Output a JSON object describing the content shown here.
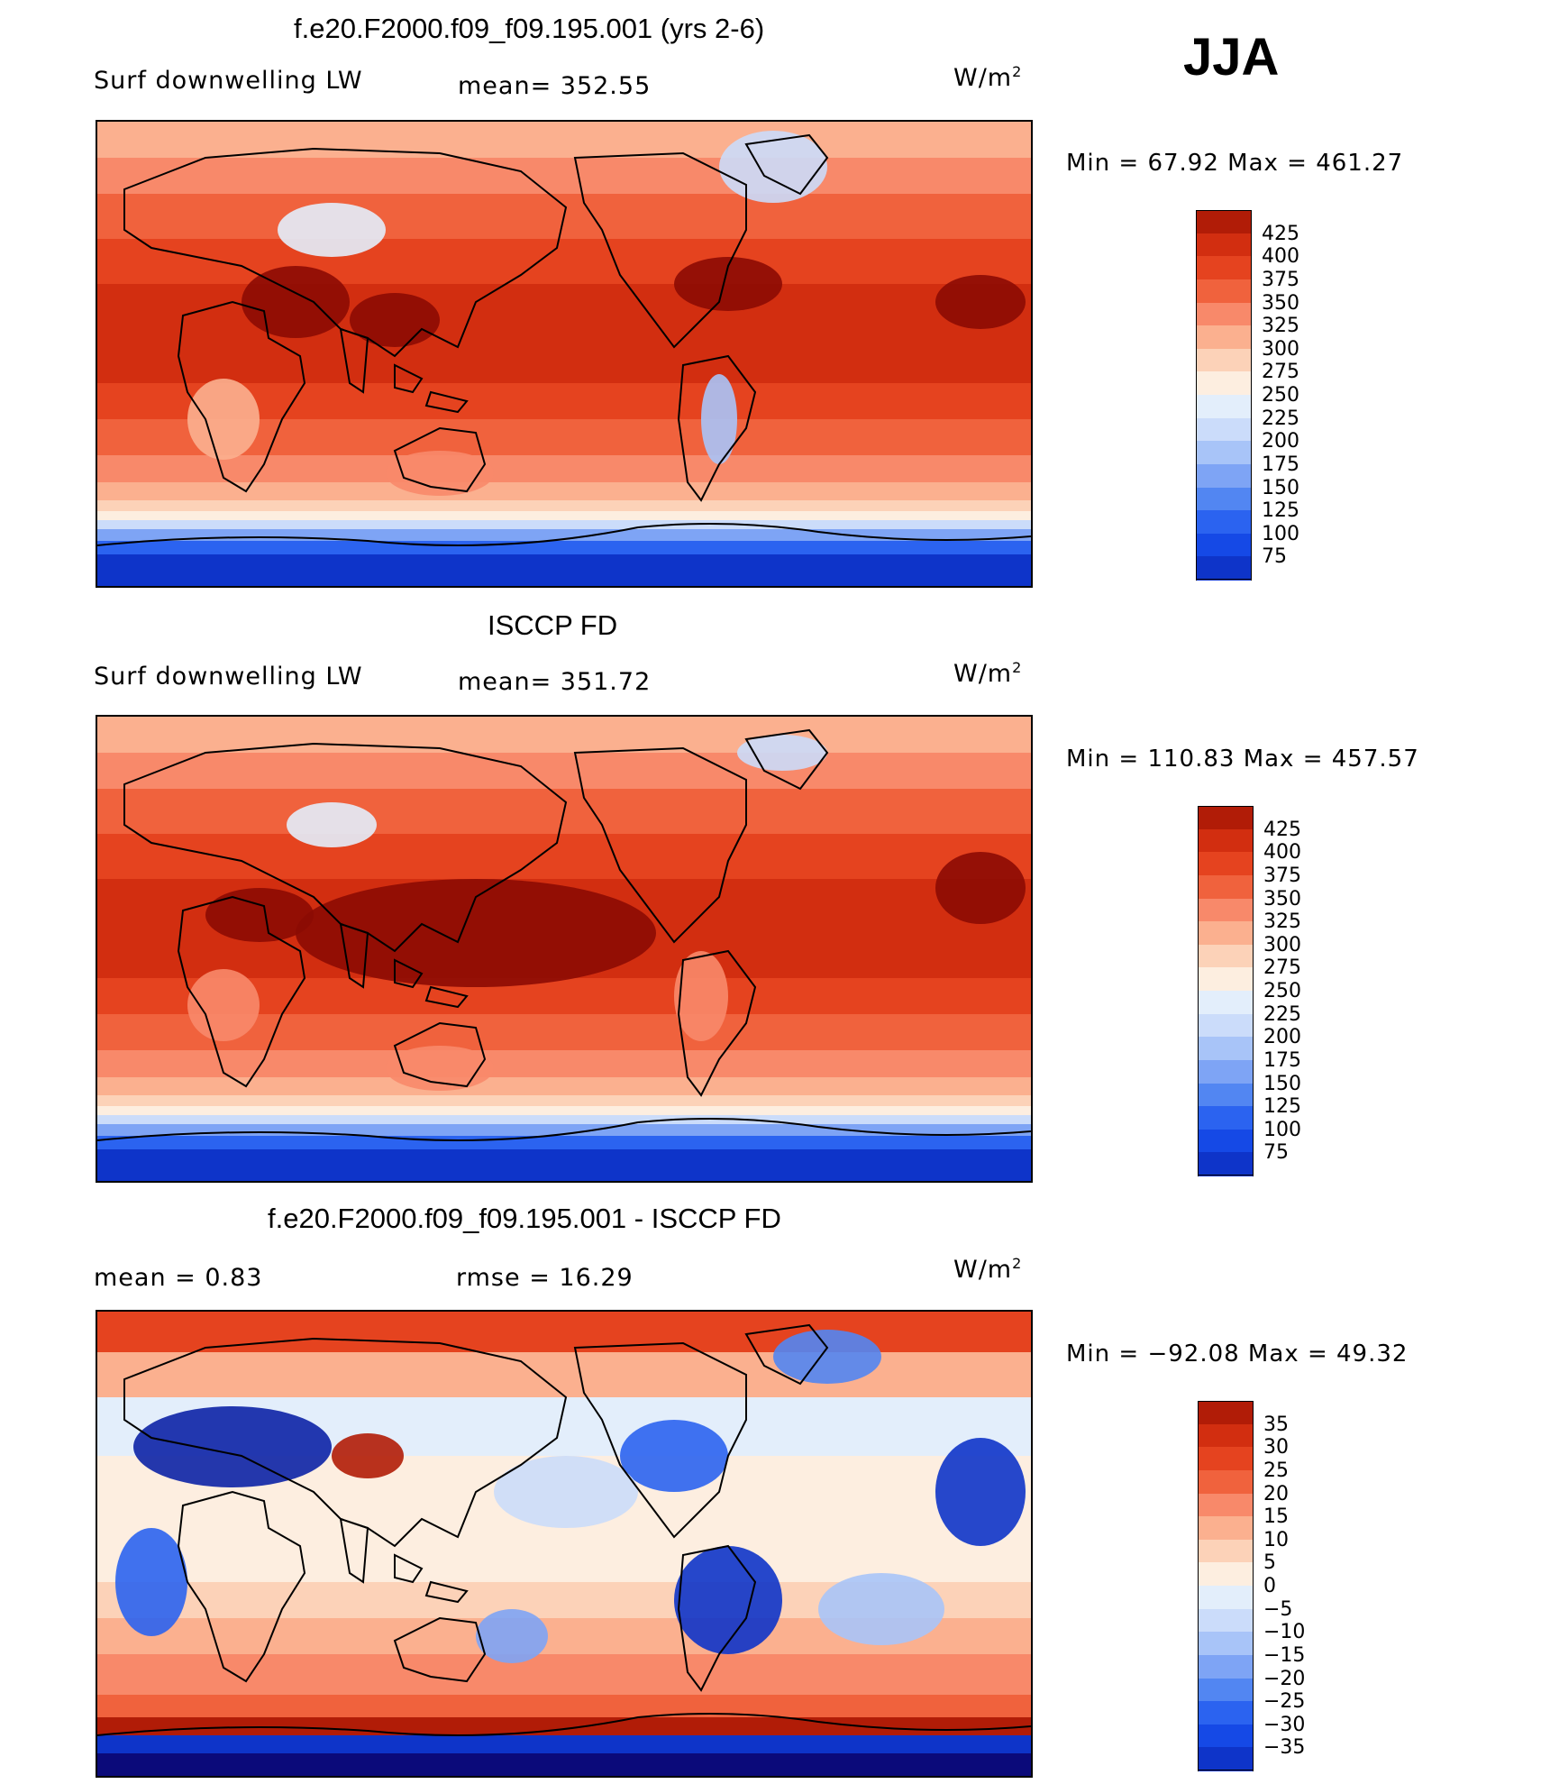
{
  "season": "JJA",
  "colors": {
    "abs_scale": [
      "#0b0a7a",
      "#0c22a6",
      "#0e34c9",
      "#1549e6",
      "#2b63f0",
      "#5286f2",
      "#7ea4f5",
      "#a8c4f8",
      "#cbdcfa",
      "#e3eefb",
      "#fdeee0",
      "#fcd2b8",
      "#fbb08f",
      "#f8896a",
      "#f0623d",
      "#e5431f",
      "#d22e10",
      "#b11c07",
      "#8c0b03"
    ],
    "diff_scale": [
      "#0b0a7a",
      "#0c22a6",
      "#0e34c9",
      "#1549e6",
      "#2b63f0",
      "#5286f2",
      "#7ea4f5",
      "#a8c4f8",
      "#cbdcfa",
      "#e3eefb",
      "#fdeee0",
      "#fcd2b8",
      "#fbb08f",
      "#f8896a",
      "#f0623d",
      "#e5431f",
      "#d22e10",
      "#b11c07",
      "#8c0b03"
    ]
  },
  "panels": [
    {
      "title": "f.e20.F2000.f09_f09.195.001 (yrs 2-6)",
      "left_label": "Surf  downwelling  LW",
      "mid_label": "mean=  352.55",
      "units": "W/m",
      "units_sup": "2",
      "minmax": "Min  =    67.92  Max  =  461.27",
      "colorbar_labels": [
        "425",
        "400",
        "375",
        "350",
        "325",
        "300",
        "275",
        "250",
        "225",
        "200",
        "175",
        "150",
        "125",
        "100",
        "75"
      ],
      "type": "model"
    },
    {
      "title": "ISCCP FD",
      "left_label": "Surf  downwelling  LW",
      "mid_label": "mean=  351.72",
      "units": "W/m",
      "units_sup": "2",
      "minmax": "Min  =  110.83  Max  =  457.57",
      "colorbar_labels": [
        "425",
        "400",
        "375",
        "350",
        "325",
        "300",
        "275",
        "250",
        "225",
        "200",
        "175",
        "150",
        "125",
        "100",
        "75"
      ],
      "type": "obs"
    },
    {
      "title": "f.e20.F2000.f09_f09.195.001 - ISCCP FD",
      "left_label": "mean  =      0.83",
      "mid_label": "rmse  =     16.29",
      "units": "W/m",
      "units_sup": "2",
      "minmax": "Min  =  −92.08  Max  =    49.32",
      "colorbar_labels": [
        "35",
        "30",
        "25",
        "20",
        "15",
        "10",
        "5",
        "0",
        "−5",
        "−10",
        "−15",
        "−20",
        "−25",
        "−30",
        "−35"
      ],
      "type": "diff"
    }
  ]
}
